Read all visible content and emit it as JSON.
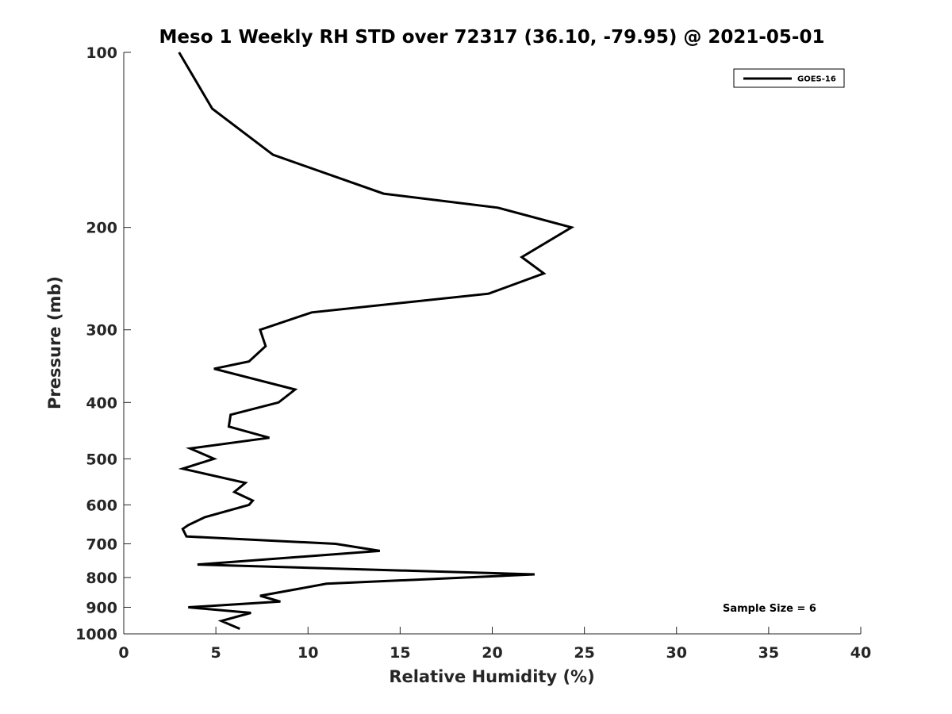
{
  "chart_data": {
    "type": "line",
    "title": "Meso 1 Weekly RH STD over 72317 (36.10, -79.95) @ 2021-05-01",
    "xlabel": "Relative Humidity (%)",
    "ylabel": "Pressure (mb)",
    "xlim": [
      0,
      40
    ],
    "ylim": [
      100,
      1000
    ],
    "y_scale": "log",
    "y_reversed": true,
    "x_ticks": [
      "0",
      "5",
      "10",
      "15",
      "20",
      "25",
      "30",
      "35",
      "40"
    ],
    "y_ticks": [
      "100",
      "200",
      "300",
      "400",
      "500",
      "600",
      "700",
      "800",
      "900",
      "1000"
    ],
    "grid": false,
    "legend_position": "top-right",
    "annotation": "Sample Size = 6",
    "series": [
      {
        "name": "GOES-16",
        "color": "#000000",
        "points": [
          [
            3.0,
            100
          ],
          [
            4.8,
            125
          ],
          [
            8.1,
            150
          ],
          [
            14.1,
            175
          ],
          [
            20.3,
            185
          ],
          [
            24.3,
            200
          ],
          [
            21.6,
            225
          ],
          [
            22.8,
            240
          ],
          [
            19.8,
            260
          ],
          [
            10.2,
            280
          ],
          [
            7.4,
            300
          ],
          [
            7.7,
            320
          ],
          [
            6.8,
            340
          ],
          [
            4.9,
            350
          ],
          [
            9.3,
            380
          ],
          [
            8.4,
            400
          ],
          [
            5.8,
            420
          ],
          [
            5.7,
            440
          ],
          [
            7.9,
            460
          ],
          [
            3.6,
            480
          ],
          [
            4.9,
            500
          ],
          [
            3.2,
            520
          ],
          [
            6.6,
            550
          ],
          [
            6.0,
            570
          ],
          [
            7.0,
            590
          ],
          [
            6.8,
            600
          ],
          [
            4.4,
            630
          ],
          [
            3.5,
            650
          ],
          [
            3.2,
            660
          ],
          [
            3.4,
            680
          ],
          [
            11.5,
            700
          ],
          [
            13.9,
            720
          ],
          [
            4.0,
            760
          ],
          [
            22.3,
            790
          ],
          [
            11.0,
            820
          ],
          [
            7.4,
            860
          ],
          [
            8.5,
            880
          ],
          [
            3.5,
            900
          ],
          [
            6.9,
            920
          ],
          [
            5.3,
            950
          ],
          [
            6.3,
            980
          ]
        ]
      }
    ]
  }
}
